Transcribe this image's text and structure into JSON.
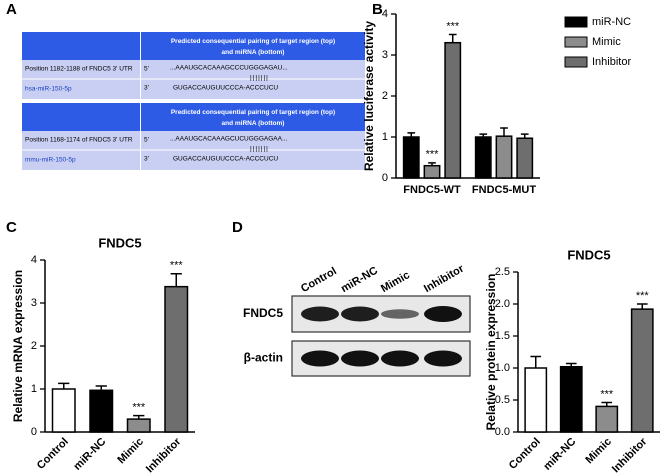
{
  "panels": [
    "A",
    "B",
    "C",
    "D"
  ],
  "table_a": [
    {
      "header": "Predicted consequential pairing of target region (top) and miRNA (bottom)",
      "position": "Position 1182-1188 of FNDC5 3' UTR",
      "five": "5'",
      "target": "...AAAUGCACAAAGCCCUGGGAGAU...",
      "pairing": "|||||||",
      "mirna": "hsa-miR-150-5p",
      "three": "3'",
      "mirna_seq": "GUGACCAUGUUCCCA-ACCCUCU"
    },
    {
      "header": "Predicted consequential pairing of target region (top) and miRNA (bottom)",
      "position": "Position 1168-1174 of FNDC5 3' UTR",
      "five": "5'",
      "target": "...AAAUGCACAAAGCUCUGGGAGAA...",
      "pairing": "|||||||",
      "mirna": "mmu-miR-150-5p",
      "three": "3'",
      "mirna_seq": "GUGACCAUGUUCCCA-ACCCUCU"
    }
  ],
  "blot": {
    "lanes": [
      "Control",
      "miR-NC",
      "Mimic",
      "Inhibitor"
    ],
    "rows": [
      "FNDC5",
      "β-actin"
    ]
  },
  "chart_data": [
    {
      "type": "bar",
      "ylabel": "Relative luciferase activity",
      "categories": [
        "FNDC5-WT",
        "FNDC5-MUT"
      ],
      "series": [
        {
          "name": "miR-NC",
          "color": "#000000",
          "values": [
            1.0,
            1.0
          ],
          "errors": [
            0.1,
            0.07
          ],
          "significance": [
            null,
            null
          ]
        },
        {
          "name": "Mimic",
          "color": "#8c8c8c",
          "values": [
            0.3,
            1.02
          ],
          "errors": [
            0.07,
            0.2
          ],
          "significance": [
            "***",
            null
          ]
        },
        {
          "name": "Inhibitor",
          "color": "#6e6e6e",
          "values": [
            3.3,
            0.97
          ],
          "errors": [
            0.2,
            0.1
          ],
          "significance": [
            "***",
            null
          ]
        }
      ],
      "ylim": [
        0,
        4
      ],
      "yticks": [
        0,
        1,
        2,
        3,
        4
      ],
      "legend": "right"
    },
    {
      "type": "bar",
      "title": "FNDC5",
      "ylabel": "Relative mRNA expression",
      "categories": [
        "Control",
        "miR-NC",
        "Mimic",
        "Inhibitor"
      ],
      "colors": [
        "#ffffff",
        "#000000",
        "#8c8c8c",
        "#6e6e6e"
      ],
      "values": [
        1.0,
        0.97,
        0.3,
        3.38
      ],
      "errors": [
        0.13,
        0.1,
        0.08,
        0.3
      ],
      "significance": [
        null,
        null,
        "***",
        "***"
      ],
      "ylim": [
        0,
        4
      ],
      "yticks": [
        0,
        1,
        2,
        3,
        4
      ]
    },
    {
      "type": "bar",
      "title": "FNDC5",
      "ylabel": "Relative protein expression",
      "categories": [
        "Control",
        "miR-NC",
        "Mimic",
        "Inhibitor"
      ],
      "colors": [
        "#ffffff",
        "#000000",
        "#8c8c8c",
        "#6e6e6e"
      ],
      "values": [
        1.0,
        1.02,
        0.4,
        1.92
      ],
      "errors": [
        0.18,
        0.05,
        0.06,
        0.08
      ],
      "significance": [
        null,
        null,
        "***",
        "***"
      ],
      "ylim": [
        0,
        2.5
      ],
      "yticks": [
        {
          "value": 0,
          "label": "0.0"
        },
        0.5,
        {
          "value": 1,
          "label": "1.0"
        },
        1.5,
        {
          "value": 2,
          "label": "2.0"
        },
        2.5
      ]
    }
  ]
}
